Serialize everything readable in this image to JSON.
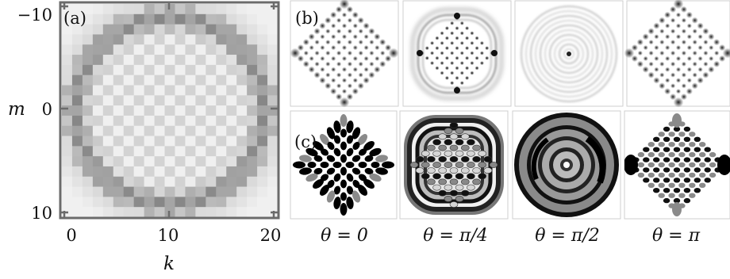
{
  "panel_a": {
    "label": "(a)",
    "x_axis_title": "k",
    "y_axis_title": "m",
    "x_ticks": [
      "0",
      "10",
      "20"
    ],
    "y_ticks": [
      "−10",
      "0",
      "10"
    ]
  },
  "panel_b": {
    "label": "(b)"
  },
  "panel_c": {
    "label": "(c)"
  },
  "columns": [
    {
      "theta": "θ = 0"
    },
    {
      "theta": "θ = π/4"
    },
    {
      "theta": "θ = π/2"
    },
    {
      "theta": "θ = π"
    }
  ],
  "colors": {
    "frame": "#6b6b6b",
    "ink": "#111111",
    "mid_gray": "#8c8c8c"
  }
}
